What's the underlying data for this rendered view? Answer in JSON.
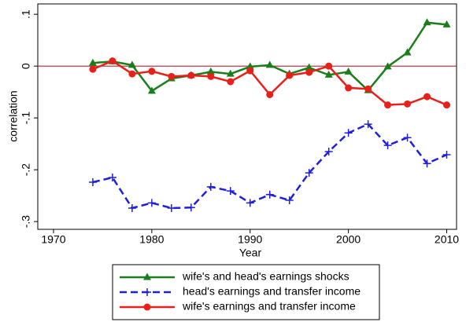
{
  "chart_data": {
    "type": "line",
    "x": [
      1974,
      1976,
      1978,
      1980,
      1982,
      1984,
      1986,
      1988,
      1990,
      1992,
      1994,
      1996,
      1998,
      2000,
      2002,
      2004,
      2006,
      2008,
      2010
    ],
    "series": [
      {
        "name": "wife's and head's earnings shocks",
        "color": "#1a7f1a",
        "marker": "triangle",
        "dash": "solid",
        "values": [
          0.006,
          0.009,
          0.002,
          -0.048,
          -0.024,
          -0.018,
          -0.011,
          -0.015,
          -0.001,
          0.002,
          -0.015,
          -0.003,
          -0.017,
          -0.011,
          -0.047,
          -0.001,
          0.026,
          0.084,
          0.08
        ]
      },
      {
        "name": "head's earnings and transfer income",
        "color": "#1f1fe0",
        "marker": "plus",
        "dash": "dashed",
        "values": [
          -0.224,
          -0.215,
          -0.274,
          -0.264,
          -0.274,
          -0.273,
          -0.233,
          -0.241,
          -0.264,
          -0.248,
          -0.259,
          -0.206,
          -0.165,
          -0.129,
          -0.112,
          -0.153,
          -0.138,
          -0.188,
          -0.171
        ]
      },
      {
        "name": "wife's earnings and transfer income",
        "color": "#e8201a",
        "marker": "circle",
        "dash": "solid",
        "values": [
          -0.006,
          0.01,
          -0.015,
          -0.01,
          -0.02,
          -0.018,
          -0.02,
          -0.03,
          -0.009,
          -0.055,
          -0.018,
          -0.012,
          0,
          -0.042,
          -0.044,
          -0.075,
          -0.073,
          -0.059,
          -0.075
        ]
      }
    ],
    "x_label": "Year",
    "y_label": "correlation",
    "xlim": [
      1968.4,
      2011
    ],
    "xticks": [
      1970,
      1980,
      1990,
      2000,
      2010
    ],
    "ylim": [
      -0.315,
      0.12
    ],
    "yticks": [
      {
        "value": 0.1,
        "label": ".1"
      },
      0,
      {
        "value": -0.1,
        "label": "-.1"
      },
      {
        "value": -0.2,
        "label": "-.2"
      },
      {
        "value": -0.3,
        "label": "-.3"
      }
    ],
    "reference_line": {
      "value": 0,
      "color": "#b0203a"
    },
    "legend": "bottom"
  }
}
